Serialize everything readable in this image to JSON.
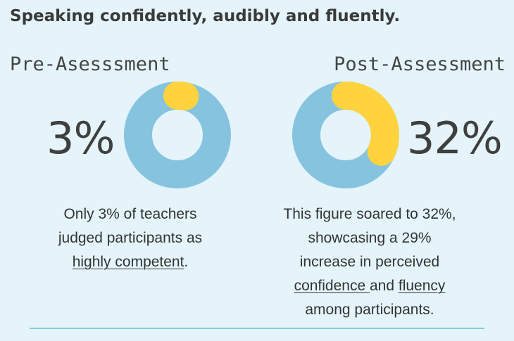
{
  "heading": "Speaking confidently, audibly and fluently.",
  "colors": {
    "ring": "#86c3de",
    "accent": "#fed33e",
    "background": "#e4f4fa"
  },
  "chart_data": [
    {
      "type": "pie",
      "style": "donut",
      "title": "Pre-Asesssment",
      "value_label": "3%",
      "values": [
        3,
        97
      ],
      "caption": {
        "line1": "Only 3% of teachers",
        "line2": "judged participants as",
        "link": "highly competent",
        "tail": "."
      }
    },
    {
      "type": "pie",
      "style": "donut",
      "title": "Post-Assessment",
      "value_label": "32%",
      "values": [
        32,
        68
      ],
      "caption": {
        "line1": "This figure soared to 32%,",
        "line2": "showcasing a 29%",
        "line3": "increase in perceived",
        "link1": "confidence ",
        "mid": "and ",
        "link2": "fluency ",
        "line5": "among participants."
      }
    }
  ]
}
